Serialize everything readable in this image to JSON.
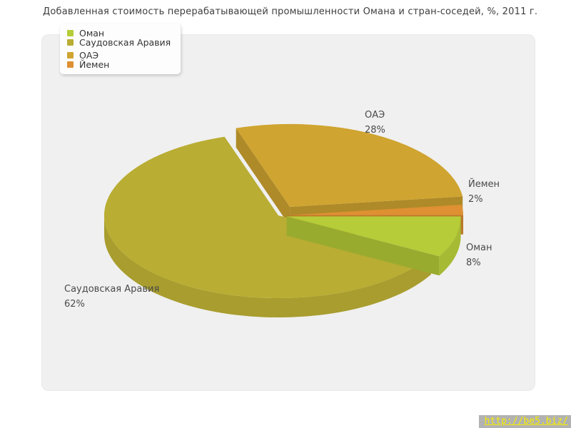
{
  "title": "Добавленная стоимость перерабатывающей промышленности Омана и стран-соседей, %, 2011 г.",
  "watermark": {
    "text": "http://be5.biz/"
  },
  "legend": {
    "items": [
      {
        "label": "Оман"
      },
      {
        "label": "Саудовская Аравия"
      },
      {
        "label": "ОАЭ"
      },
      {
        "label": "Йемен"
      }
    ]
  },
  "chart_data": {
    "type": "pie",
    "style": "3d-exploded-pie",
    "title": "Добавленная стоимость перерабатывающей промышленности Омана и стран-соседей, %, 2011 г.",
    "unit": "%",
    "legend_position": "top-left",
    "slices": [
      {
        "id": "oman",
        "name": "Оман",
        "value": 8,
        "pct_label": "8%",
        "color": "#b6cc38"
      },
      {
        "id": "saudi-arabia",
        "name": "Саудовская Аравия",
        "value": 62,
        "pct_label": "62%",
        "color": "#b9ad33"
      },
      {
        "id": "uae",
        "name": "ОАЭ",
        "value": 28,
        "pct_label": "28%",
        "color": "#cfa430"
      },
      {
        "id": "yemen",
        "name": "Йемен",
        "value": 2,
        "pct_label": "2%",
        "color": "#de9033"
      }
    ],
    "colors": {
      "panel_background": "#f0f0f0",
      "page_background": "#ffffff",
      "title_text": "#3e3e3e",
      "label_text": "#4a4a4a",
      "watermark_background": "#b2b2b2",
      "watermark_text": "#f7ee00"
    }
  }
}
